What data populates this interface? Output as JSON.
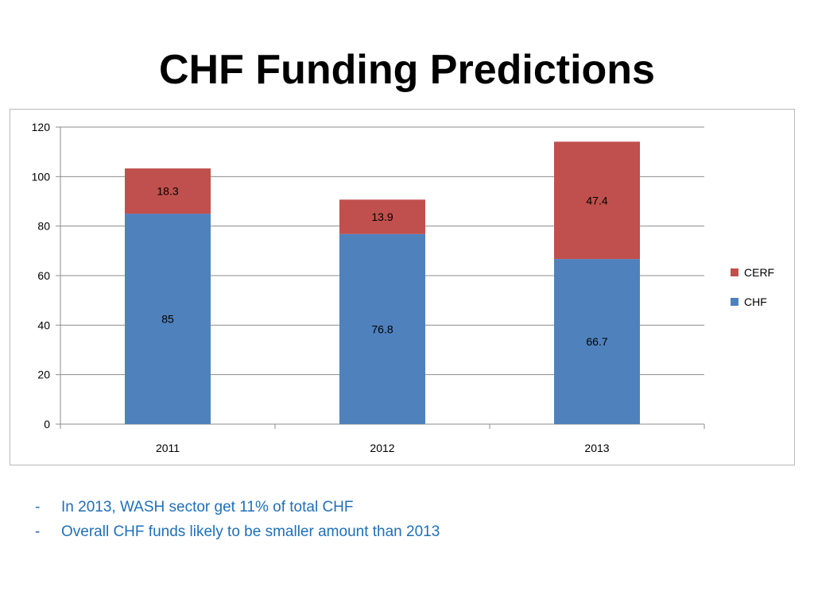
{
  "slide": {
    "title": "CHF Funding Predictions",
    "bullets": [
      "In 2013, WASH sector get 11% of total CHF",
      "Overall CHF funds likely to be smaller amount than 2013"
    ],
    "bullet_marker": "-",
    "bullet_color": "#1f6fb8"
  },
  "chart_data": {
    "type": "bar",
    "stacked": true,
    "categories": [
      "2011",
      "2012",
      "2013"
    ],
    "series": [
      {
        "name": "CHF",
        "values": [
          85,
          76.8,
          66.7
        ],
        "color": "#4f81bd",
        "labels": [
          "85",
          "76.8",
          "66.7"
        ]
      },
      {
        "name": "CERF",
        "values": [
          18.3,
          13.9,
          47.4
        ],
        "color": "#c0504d",
        "labels": [
          "18.3",
          "13.9",
          "47.4"
        ]
      }
    ],
    "ylim": [
      0,
      120
    ],
    "yticks": [
      "0",
      "20",
      "40",
      "60",
      "80",
      "100",
      "120"
    ],
    "grid": true,
    "legend": {
      "position": "right",
      "order": [
        "CERF",
        "CHF"
      ]
    },
    "title": "",
    "xlabel": "",
    "ylabel": ""
  }
}
